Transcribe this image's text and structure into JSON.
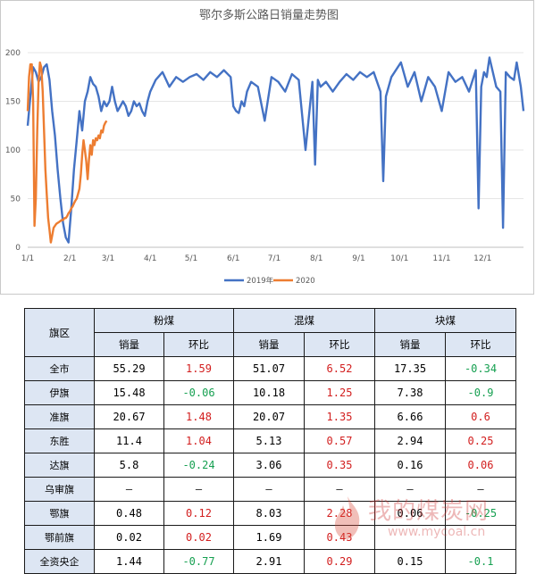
{
  "chart_data": {
    "type": "line",
    "title": "鄂尔多斯公路日销量走势图",
    "xlabel": "",
    "ylabel": "",
    "ylim": [
      0,
      200
    ],
    "yticks": [
      0,
      50,
      100,
      150,
      200
    ],
    "xticks": [
      "1/1",
      "2/1",
      "3/1",
      "4/1",
      "5/1",
      "6/1",
      "7/1",
      "8/1",
      "9/1",
      "10/1",
      "11/1",
      "12/1"
    ],
    "xtick_days": [
      1,
      32,
      60,
      91,
      121,
      152,
      182,
      213,
      244,
      274,
      305,
      335
    ],
    "legend_position": "bottom",
    "series": [
      {
        "name": "2019年",
        "color": "#4472c4",
        "x": [
          1,
          3,
          5,
          7,
          9,
          11,
          13,
          15,
          17,
          19,
          21,
          23,
          25,
          27,
          29,
          31,
          33,
          35,
          37,
          39,
          41,
          43,
          45,
          47,
          49,
          51,
          53,
          55,
          57,
          59,
          61,
          63,
          65,
          67,
          69,
          71,
          73,
          75,
          77,
          79,
          81,
          83,
          85,
          87,
          89,
          91,
          95,
          100,
          105,
          110,
          115,
          120,
          125,
          130,
          135,
          140,
          145,
          150,
          152,
          154,
          156,
          158,
          160,
          162,
          165,
          170,
          175,
          180,
          185,
          190,
          195,
          200,
          205,
          210,
          212,
          214,
          216,
          220,
          225,
          230,
          235,
          240,
          245,
          250,
          255,
          260,
          262,
          264,
          268,
          275,
          280,
          285,
          290,
          295,
          300,
          305,
          310,
          315,
          320,
          325,
          330,
          332,
          334,
          336,
          338,
          340,
          345,
          348,
          350,
          352,
          355,
          358,
          360,
          363,
          365
        ],
        "values": [
          125,
          155,
          185,
          180,
          170,
          175,
          185,
          188,
          172,
          140,
          115,
          80,
          50,
          25,
          10,
          5,
          40,
          80,
          110,
          140,
          120,
          150,
          160,
          175,
          168,
          165,
          155,
          140,
          150,
          145,
          150,
          165,
          150,
          140,
          145,
          150,
          145,
          135,
          140,
          150,
          145,
          148,
          140,
          135,
          150,
          160,
          172,
          180,
          165,
          175,
          170,
          175,
          178,
          172,
          180,
          175,
          182,
          175,
          145,
          140,
          138,
          150,
          145,
          160,
          170,
          165,
          130,
          175,
          170,
          160,
          178,
          172,
          100,
          170,
          85,
          172,
          165,
          170,
          160,
          170,
          178,
          172,
          180,
          175,
          180,
          160,
          68,
          155,
          175,
          190,
          165,
          180,
          150,
          175,
          165,
          140,
          180,
          170,
          175,
          160,
          182,
          40,
          165,
          180,
          175,
          195,
          165,
          160,
          20,
          180,
          175,
          172,
          190,
          165,
          140
        ]
      },
      {
        "name": "2020",
        "color": "#ed7d31",
        "x": [
          1,
          2,
          3,
          4,
          5,
          6,
          7,
          8,
          9,
          10,
          11,
          12,
          13,
          14,
          15,
          16,
          17,
          18,
          19,
          20,
          21,
          22,
          23,
          24,
          25,
          26,
          27,
          28,
          29,
          30,
          31,
          32,
          33,
          34,
          35,
          36,
          37,
          38,
          39,
          40,
          41,
          42,
          43,
          44,
          45,
          46,
          47,
          48,
          49,
          50,
          51,
          52,
          53,
          54,
          55,
          56,
          57,
          58,
          59,
          60,
          61,
          62,
          63,
          64,
          65
        ],
        "values": [
          140,
          175,
          188,
          188,
          150,
          22,
          50,
          120,
          170,
          190,
          185,
          160,
          120,
          80,
          55,
          30,
          18,
          5,
          12,
          20,
          22,
          24,
          25,
          26,
          27,
          28,
          28,
          30,
          30,
          32,
          35,
          37,
          40,
          42,
          45,
          48,
          50,
          55,
          60,
          75,
          95,
          110,
          100,
          88,
          70,
          90,
          105,
          95,
          110,
          105,
          112,
          110,
          115,
          112,
          120,
          118,
          125,
          128,
          130,
          null,
          null,
          null,
          null,
          null,
          null
        ]
      }
    ]
  },
  "table": {
    "corner": "旗区",
    "groups": [
      "粉煤",
      "混煤",
      "块煤"
    ],
    "subheaders": [
      "销量",
      "环比",
      "销量",
      "环比",
      "销量",
      "环比"
    ],
    "rows": [
      {
        "region": "全市",
        "cells": [
          "55.29",
          "1.59",
          "51.07",
          "6.52",
          "17.35",
          "-0.34"
        ]
      },
      {
        "region": "伊旗",
        "cells": [
          "15.48",
          "-0.06",
          "10.18",
          "1.25",
          "7.38",
          "-0.9"
        ]
      },
      {
        "region": "准旗",
        "cells": [
          "20.67",
          "1.48",
          "20.07",
          "1.35",
          "6.66",
          "0.6"
        ]
      },
      {
        "region": "东胜",
        "cells": [
          "11.4",
          "1.04",
          "5.13",
          "0.57",
          "2.94",
          "0.25"
        ]
      },
      {
        "region": "达旗",
        "cells": [
          "5.8",
          "-0.24",
          "3.06",
          "0.35",
          "0.16",
          "0.06"
        ]
      },
      {
        "region": "乌审旗",
        "cells": [
          "—",
          "—",
          "—",
          "—",
          "—",
          "—"
        ]
      },
      {
        "region": "鄂旗",
        "cells": [
          "0.48",
          "0.12",
          "8.03",
          "2.28",
          "0.06",
          "-0.25"
        ]
      },
      {
        "region": "鄂前旗",
        "cells": [
          "0.02",
          "0.02",
          "1.69",
          "0.43",
          "",
          ""
        ]
      },
      {
        "region": "全资央企",
        "cells": [
          "1.44",
          "-0.77",
          "2.91",
          "0.29",
          "0.15",
          "-0.1"
        ]
      }
    ]
  },
  "watermark": {
    "text": "我的煤炭网",
    "url": "www.mycoal.cn",
    "color": "#cc3333"
  },
  "colors": {
    "positive": "#d21e1e",
    "negative": "#16a051",
    "header_bg": "#dde6f3"
  }
}
